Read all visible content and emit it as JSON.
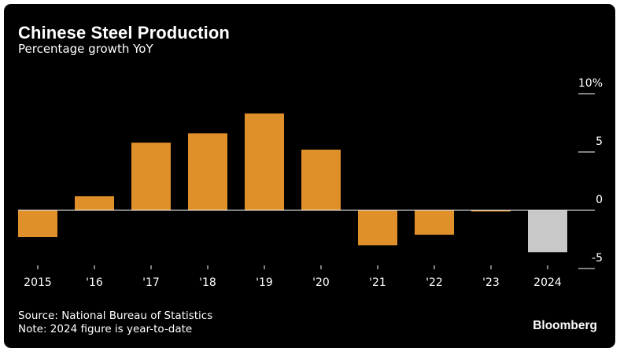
{
  "header": {
    "title": "Chinese Steel Production",
    "subtitle": "Percentage growth YoY"
  },
  "footer": {
    "source": "Source: National Bureau of Statistics",
    "note": "Note: 2024 figure is year-to-date",
    "brand": "Bloomberg"
  },
  "colors": {
    "bar": "#e0902a",
    "bar_ytd": "#c8c8c8",
    "background": "#000000",
    "text": "#ffffff"
  },
  "chart_data": {
    "type": "bar",
    "categories": [
      "2015",
      "'16",
      "'17",
      "'18",
      "'19",
      "'20",
      "'21",
      "'22",
      "'23",
      "2024"
    ],
    "values": [
      -2.3,
      1.2,
      5.8,
      6.6,
      8.3,
      5.2,
      -3.0,
      -2.1,
      -0.1,
      -3.6
    ],
    "highlight": [
      false,
      false,
      false,
      false,
      false,
      false,
      false,
      false,
      false,
      true
    ],
    "ylim": [
      -5,
      10
    ],
    "yticks": [
      {
        "value": 10,
        "label": "10%"
      },
      {
        "value": 5,
        "label": "5"
      },
      {
        "value": 0,
        "label": "0"
      },
      {
        "value": -5,
        "label": "-5"
      }
    ],
    "xlabel": "",
    "ylabel": ""
  }
}
